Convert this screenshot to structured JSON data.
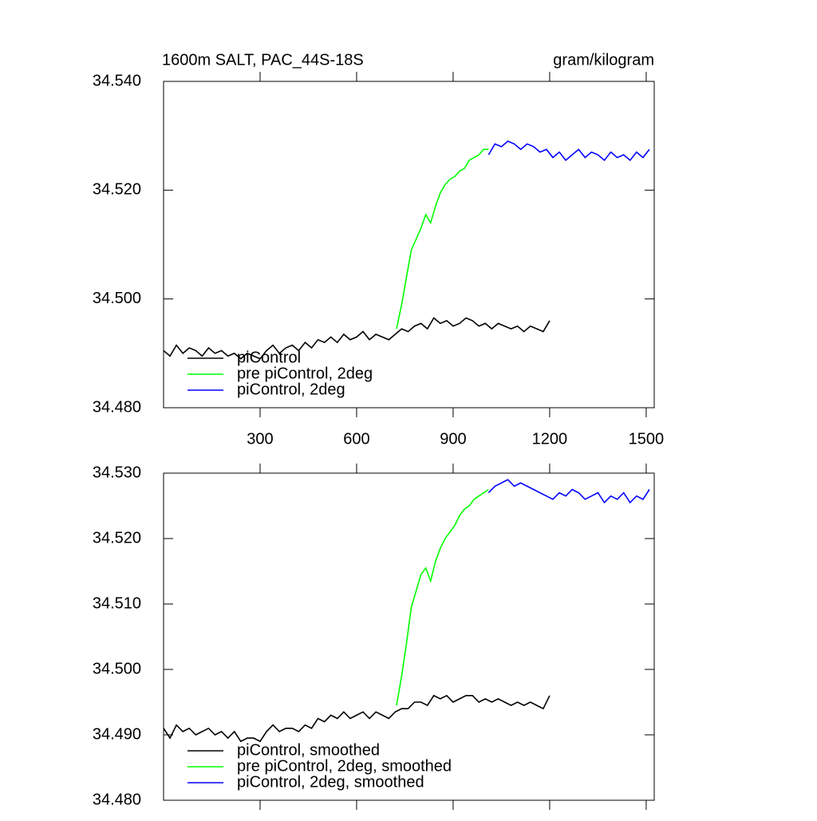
{
  "chart_data": [
    {
      "type": "line",
      "title": "1600m SALT, PAC_44S-18S",
      "units": "gram/kilogram",
      "xlim": [
        0,
        1525
      ],
      "xticks": [
        300,
        600,
        900,
        1200,
        1500
      ],
      "ylim": [
        34.48,
        34.54
      ],
      "yticks": [
        {
          "value": 34.48,
          "label": "34.480"
        },
        {
          "value": 34.5,
          "label": "34.500"
        },
        {
          "value": 34.52,
          "label": "34.520"
        },
        {
          "value": 34.54,
          "label": "34.540"
        }
      ],
      "legend": "lower left",
      "series": [
        {
          "name": "piControl",
          "color": "#000000",
          "x": [
            0,
            20,
            40,
            60,
            80,
            100,
            120,
            140,
            160,
            180,
            200,
            220,
            240,
            260,
            280,
            300,
            320,
            340,
            360,
            380,
            400,
            420,
            440,
            460,
            480,
            500,
            520,
            540,
            560,
            580,
            600,
            620,
            640,
            660,
            680,
            700,
            720,
            740,
            760,
            780,
            800,
            820,
            840,
            860,
            880,
            900,
            920,
            940,
            960,
            980,
            1000,
            1020,
            1040,
            1060,
            1080,
            1100,
            1120,
            1140,
            1160,
            1180,
            1200
          ],
          "values": [
            34.4905,
            34.4895,
            34.4915,
            34.49,
            34.491,
            34.4905,
            34.4895,
            34.491,
            34.49,
            34.4905,
            34.4895,
            34.49,
            34.489,
            34.49,
            34.4895,
            34.489,
            34.4905,
            34.4915,
            34.49,
            34.491,
            34.4915,
            34.4905,
            34.492,
            34.491,
            34.4925,
            34.492,
            34.493,
            34.492,
            34.4935,
            34.4925,
            34.493,
            34.494,
            34.4925,
            34.4935,
            34.493,
            34.4925,
            34.4935,
            34.4945,
            34.494,
            34.495,
            34.4955,
            34.4945,
            34.4965,
            34.4955,
            34.496,
            34.495,
            34.4955,
            34.4965,
            34.496,
            34.495,
            34.4955,
            34.4945,
            34.4955,
            34.495,
            34.4945,
            34.495,
            34.494,
            34.495,
            34.4945,
            34.494,
            34.496
          ]
        },
        {
          "name": "pre piControl, 2deg",
          "color": "#00ff00",
          "x": [
            724,
            740,
            755,
            770,
            785,
            800,
            815,
            830,
            845,
            860,
            875,
            890,
            905,
            920,
            935,
            950,
            965,
            980,
            995,
            1010
          ],
          "values": [
            34.4945,
            34.499,
            34.504,
            34.509,
            34.511,
            34.513,
            34.5155,
            34.514,
            34.517,
            34.5195,
            34.521,
            34.522,
            34.5225,
            34.5235,
            34.524,
            34.5255,
            34.526,
            34.5265,
            34.5275,
            34.5275
          ]
        },
        {
          "name": "piControl, 2deg",
          "color": "#0000ff",
          "x": [
            1010,
            1030,
            1050,
            1070,
            1090,
            1110,
            1130,
            1150,
            1170,
            1190,
            1210,
            1230,
            1250,
            1270,
            1290,
            1310,
            1330,
            1350,
            1370,
            1390,
            1410,
            1430,
            1450,
            1470,
            1490,
            1510
          ],
          "values": [
            34.5265,
            34.5285,
            34.528,
            34.529,
            34.5285,
            34.5275,
            34.5285,
            34.528,
            34.527,
            34.5275,
            34.526,
            34.527,
            34.5255,
            34.5265,
            34.5275,
            34.526,
            34.527,
            34.5265,
            34.5255,
            34.527,
            34.526,
            34.5265,
            34.5255,
            34.527,
            34.526,
            34.5275
          ]
        }
      ]
    },
    {
      "type": "line",
      "xlim": [
        0,
        1525
      ],
      "xticks": [
        300,
        600,
        900,
        1200,
        1500
      ],
      "ylim": [
        34.48,
        34.53
      ],
      "yticks": [
        {
          "value": 34.48,
          "label": "34.480"
        },
        {
          "value": 34.49,
          "label": "34.490"
        },
        {
          "value": 34.5,
          "label": "34.500"
        },
        {
          "value": 34.51,
          "label": "34.510"
        },
        {
          "value": 34.52,
          "label": "34.520"
        },
        {
          "value": 34.53,
          "label": "34.530"
        }
      ],
      "legend": "lower left",
      "series": [
        {
          "name": "piControl, smoothed",
          "color": "#000000",
          "x": [
            0,
            20,
            40,
            60,
            80,
            100,
            120,
            140,
            160,
            180,
            200,
            220,
            240,
            260,
            280,
            300,
            320,
            340,
            360,
            380,
            400,
            420,
            440,
            460,
            480,
            500,
            520,
            540,
            560,
            580,
            600,
            620,
            640,
            660,
            680,
            700,
            720,
            740,
            760,
            780,
            800,
            820,
            840,
            860,
            880,
            900,
            920,
            940,
            960,
            980,
            1000,
            1020,
            1040,
            1060,
            1080,
            1100,
            1120,
            1140,
            1160,
            1180,
            1200
          ],
          "values": [
            34.491,
            34.4895,
            34.4915,
            34.4905,
            34.491,
            34.49,
            34.4905,
            34.491,
            34.49,
            34.4905,
            34.4895,
            34.4905,
            34.489,
            34.4895,
            34.4895,
            34.489,
            34.4905,
            34.4915,
            34.4905,
            34.491,
            34.491,
            34.4905,
            34.4915,
            34.491,
            34.4925,
            34.492,
            34.493,
            34.4925,
            34.4935,
            34.4925,
            34.493,
            34.4935,
            34.4925,
            34.4935,
            34.493,
            34.4925,
            34.4935,
            34.494,
            34.494,
            34.495,
            34.495,
            34.4945,
            34.496,
            34.4955,
            34.496,
            34.495,
            34.4955,
            34.496,
            34.496,
            34.495,
            34.4955,
            34.495,
            34.4955,
            34.495,
            34.4945,
            34.495,
            34.4945,
            34.495,
            34.4945,
            34.494,
            34.496
          ]
        },
        {
          "name": "pre piControl, 2deg, smoothed",
          "color": "#00ff00",
          "x": [
            724,
            740,
            755,
            770,
            785,
            800,
            815,
            830,
            845,
            860,
            875,
            890,
            905,
            920,
            935,
            950,
            965,
            980,
            995,
            1010
          ],
          "values": [
            34.4945,
            34.499,
            34.504,
            34.5095,
            34.512,
            34.5145,
            34.5155,
            34.5135,
            34.5165,
            34.5185,
            34.52,
            34.521,
            34.522,
            34.5235,
            34.5245,
            34.525,
            34.526,
            34.5265,
            34.527,
            34.5275
          ]
        },
        {
          "name": "piControl, 2deg, smoothed",
          "color": "#0000ff",
          "x": [
            1010,
            1030,
            1050,
            1070,
            1090,
            1110,
            1130,
            1150,
            1170,
            1190,
            1210,
            1230,
            1250,
            1270,
            1290,
            1310,
            1330,
            1350,
            1370,
            1390,
            1410,
            1430,
            1450,
            1470,
            1490,
            1510
          ],
          "values": [
            34.527,
            34.528,
            34.5285,
            34.529,
            34.528,
            34.5285,
            34.528,
            34.5275,
            34.527,
            34.5265,
            34.526,
            34.527,
            34.5265,
            34.5275,
            34.527,
            34.526,
            34.5265,
            34.527,
            34.5255,
            34.5265,
            34.526,
            34.527,
            34.5255,
            34.5265,
            34.526,
            34.5275
          ]
        }
      ]
    }
  ]
}
